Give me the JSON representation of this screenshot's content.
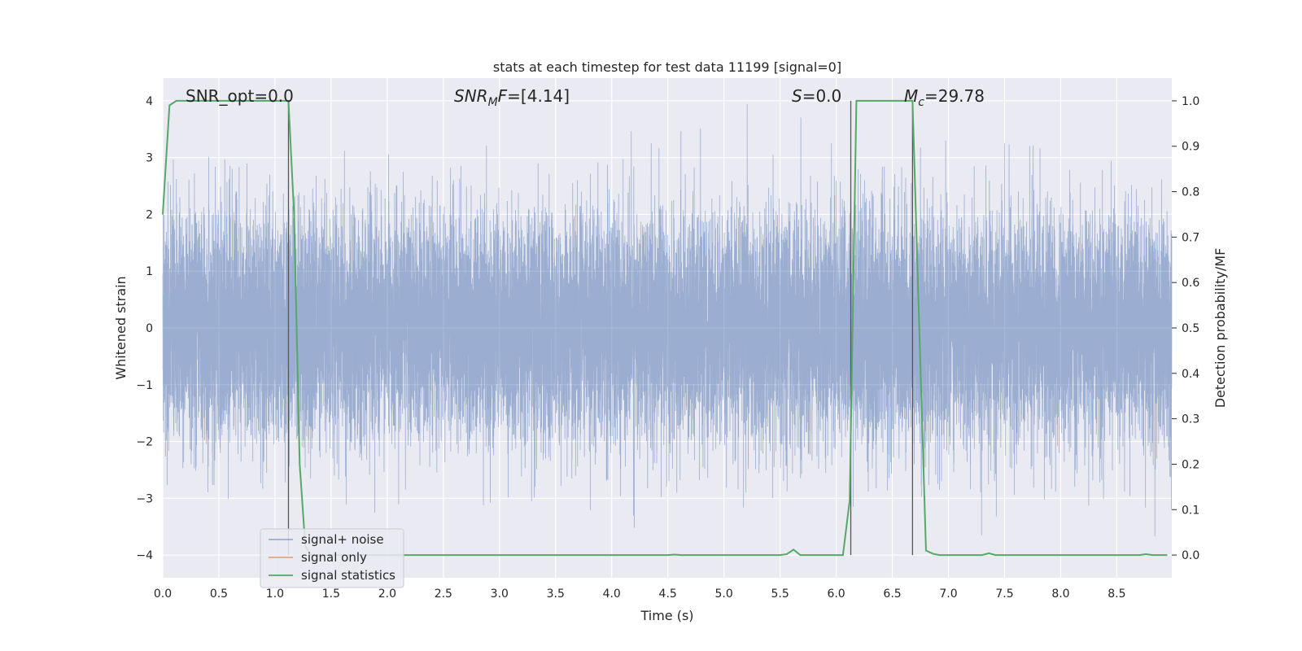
{
  "chart_data": {
    "type": "line",
    "title": "stats at each timestep for test data 11199 [signal=0]",
    "xlabel": "Time (s)",
    "ylabel": "Whitened strain",
    "y2label": "Detection probability/MF",
    "xlim": [
      0.0,
      8.99
    ],
    "ylim": [
      -4.4,
      4.4
    ],
    "y2lim": [
      -0.05,
      1.05
    ],
    "x_ticks": [
      "0.0",
      "0.5",
      "1.0",
      "1.5",
      "2.0",
      "2.5",
      "3.0",
      "3.5",
      "4.0",
      "4.5",
      "5.0",
      "5.5",
      "6.0",
      "6.5",
      "7.0",
      "7.5",
      "8.0",
      "8.5"
    ],
    "y_ticks": [
      "4",
      "3",
      "2",
      "1",
      "0",
      "−1",
      "−2",
      "−3",
      "−4"
    ],
    "y2_ticks": [
      "1.0",
      "0.9",
      "0.8",
      "0.7",
      "0.6",
      "0.5",
      "0.4",
      "0.3",
      "0.2",
      "0.1",
      "0.0"
    ],
    "grid": true,
    "legend_position": "lower-left",
    "annotations": {
      "snr_opt": "SNR_opt=0.0",
      "snr_mf": "=[4.14]",
      "snr_mf_symbol": "SNR",
      "snr_mf_sub": "M",
      "snr_mf_tail": "F",
      "s_symbol": "S",
      "s_value": "=0.0",
      "mc_symbol": "M",
      "mc_sub": "c",
      "mc_value": "=29.78"
    },
    "vertical_lines_x": [
      1.12,
      6.13,
      6.68
    ],
    "series": [
      {
        "name": "signal+ noise",
        "color": "#4c72b0",
        "opacity": 0.5,
        "kind": "noise",
        "sample_rate": 2048,
        "amplitude_std": 1.0
      },
      {
        "name": "signal only",
        "color": "#dd8452",
        "opacity": 0.8,
        "kind": "empty",
        "values": []
      },
      {
        "name": "signal statistics",
        "color": "#55a868",
        "kind": "line",
        "axis": "right",
        "x": [
          0.0,
          0.06,
          0.12,
          0.2,
          0.5,
          1.0,
          1.12,
          1.17,
          1.22,
          1.27,
          1.32,
          1.4,
          2.0,
          3.0,
          4.0,
          4.5,
          4.56,
          4.62,
          5.0,
          5.5,
          5.56,
          5.62,
          5.68,
          5.74,
          6.0,
          6.06,
          6.12,
          6.18,
          6.5,
          6.68,
          6.74,
          6.8,
          6.86,
          6.92,
          7.0,
          7.3,
          7.36,
          7.42,
          8.0,
          8.7,
          8.76,
          8.82,
          8.95
        ],
        "y": [
          0.75,
          0.99,
          1.0,
          1.0,
          1.0,
          1.0,
          1.0,
          0.75,
          0.2,
          0.02,
          0.0,
          0.0,
          0.0,
          0.0,
          0.0,
          0.0,
          0.001,
          0.0,
          0.0,
          0.0,
          0.002,
          0.012,
          0.0,
          0.0,
          0.0,
          0.0,
          0.12,
          1.0,
          1.0,
          1.0,
          0.5,
          0.01,
          0.003,
          0.0,
          0.0,
          0.0,
          0.004,
          0.0,
          0.0,
          0.0,
          0.002,
          0.0,
          0.0
        ]
      }
    ]
  }
}
